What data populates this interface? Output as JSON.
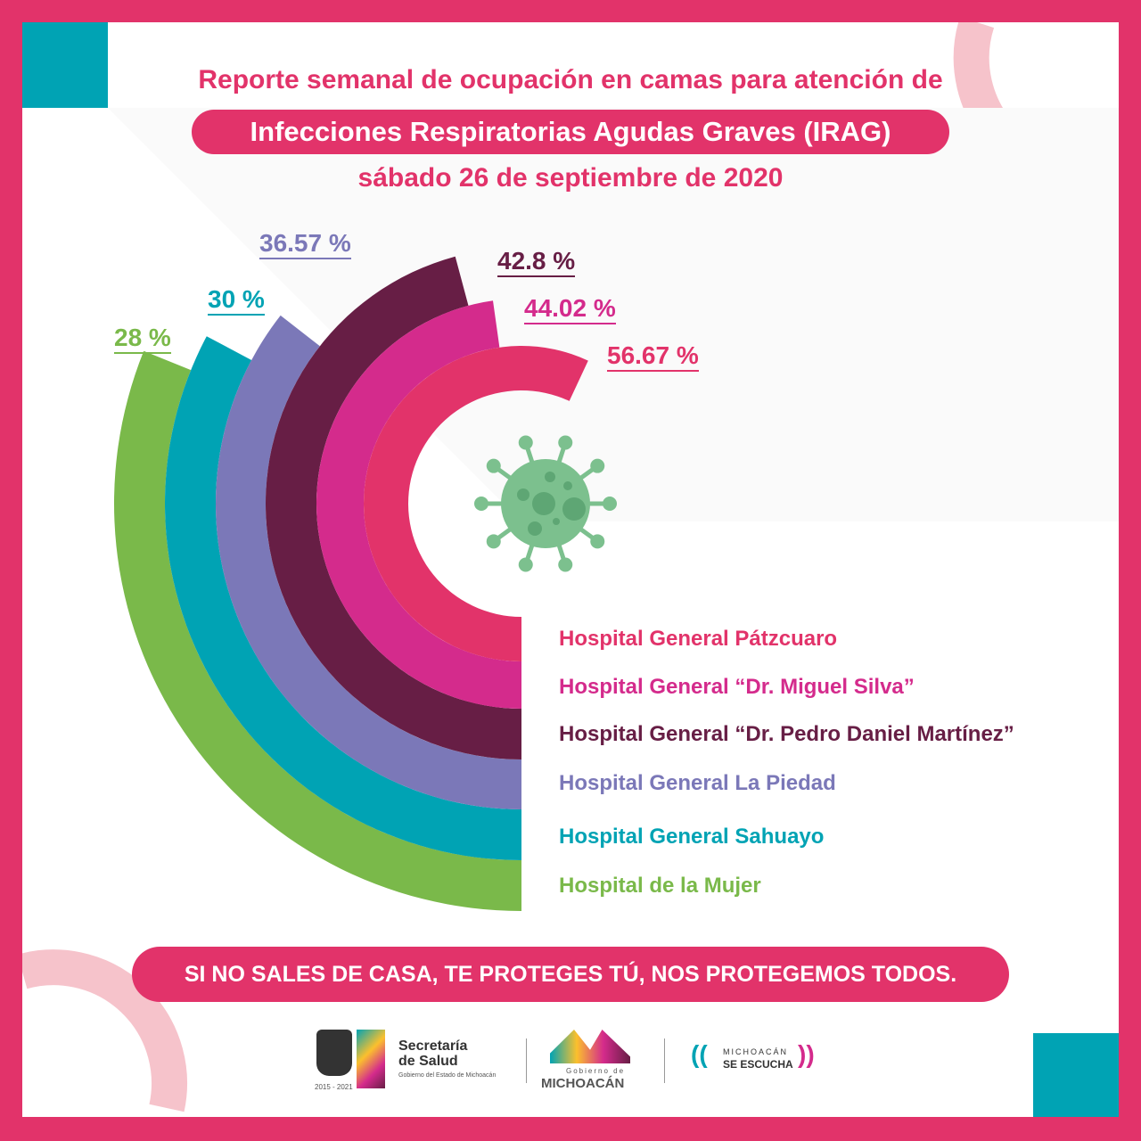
{
  "header": {
    "line1": "Reporte semanal de ocupación en camas para atención de",
    "line2": "Infecciones Respiratorias Agudas Graves (IRAG)",
    "date": "sábado 26 de septiembre de 2020"
  },
  "chart_data": {
    "type": "radial-bar",
    "title": "Reporte semanal de ocupación en camas para atención de Infecciones Respiratorias Agudas Graves (IRAG)",
    "unit": "%",
    "categories": [
      "Hospital General Pátzcuaro",
      "Hospital General “Dr. Miguel Silva”",
      "Hospital General “Dr. Pedro Daniel Martínez”",
      "Hospital General La Piedad",
      "Hospital General Sahuayo",
      "Hospital de la Mujer"
    ],
    "values": [
      56.67,
      44.02,
      42.8,
      36.57,
      30,
      28
    ],
    "value_labels": [
      "56.67 %",
      "44.02 %",
      "42.8 %",
      "36.57 %",
      "30 %",
      "28 %"
    ],
    "colors": [
      "#e2336a",
      "#d42b8c",
      "#671e45",
      "#7b78b8",
      "#00a3b4",
      "#7ab94a"
    ]
  },
  "slogan": "SI NO SALES DE CASA, TE PROTEGES TÚ, NOS PROTEGEMOS TODOS.",
  "footer": {
    "years": "2015 - 2021",
    "salud_line1": "Secretaría",
    "salud_line2": "de Salud",
    "salud_sub": "Gobierno del Estado de Michoacán",
    "gob_small": "Gobierno de",
    "gob_big": "MICHOACÁN",
    "escucha1": "MICHOACÁN",
    "escucha2": "SE ESCUCHA"
  }
}
